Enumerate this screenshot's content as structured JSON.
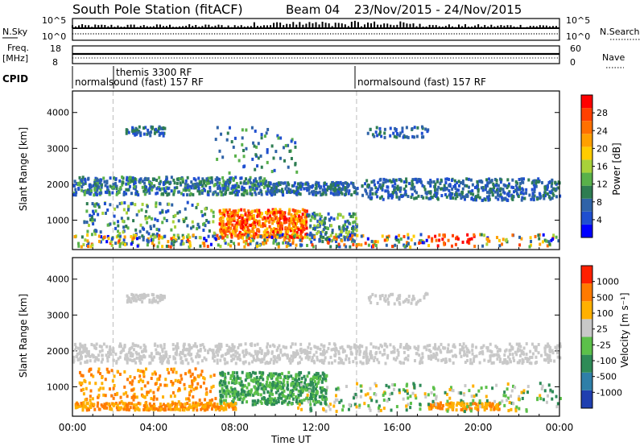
{
  "header": {
    "station": "South Pole Station (fitACF)",
    "beam": "Beam 04",
    "dates": "23/Nov/2015 - 24/Nov/2015"
  },
  "strip_panels": {
    "nsky": {
      "label": "N.Sky",
      "ticks": [
        "10^5",
        "10^0"
      ]
    },
    "nsearch": {
      "label": "N.Search",
      "ticks": [
        "10^5",
        "10^0"
      ]
    },
    "freq": {
      "label_top": "Freq.",
      "label_unit": "[MHz]",
      "ticks": [
        "18",
        "8"
      ]
    },
    "nave": {
      "label": "Nave",
      "ticks": [
        "60",
        "0"
      ]
    },
    "cpid": {
      "label": "CPID",
      "segments": [
        {
          "text": "normalsound (fast) 157 RF"
        },
        {
          "text": "themis 3300 RF"
        },
        {
          "text": "normalsound (fast) 157 RF"
        }
      ]
    }
  },
  "chart_data": [
    {
      "type": "heatmap",
      "name": "power",
      "ylabel": "Slant Range [km]",
      "ylim": [
        180,
        4600
      ],
      "yticks": [
        "1000",
        "2000",
        "3000",
        "4000"
      ],
      "xlim_hours": [
        0,
        24
      ],
      "xticks": [
        "00:00",
        "04:00",
        "08:00",
        "12:00",
        "16:00",
        "20:00",
        "00:00"
      ],
      "colorbar": {
        "label": "Power [dB]",
        "range": [
          0,
          32
        ],
        "ticks": [
          "4",
          "8",
          "12",
          "16",
          "20",
          "24",
          "28"
        ],
        "colors": [
          "#0000ff",
          "#1f4fd0",
          "#2f63a8",
          "#2e7d52",
          "#59b14a",
          "#a8d23a",
          "#ffcc00",
          "#ffa000",
          "#ff7000",
          "#ff4000",
          "#ff0000"
        ]
      }
    },
    {
      "type": "heatmap",
      "name": "velocity",
      "ylabel": "Slant Range [km]",
      "ylim": [
        180,
        4600
      ],
      "yticks": [
        "1000",
        "2000",
        "3000",
        "4000"
      ],
      "xlim_hours": [
        0,
        24
      ],
      "xticks": [
        "00:00",
        "04:00",
        "08:00",
        "12:00",
        "16:00",
        "20:00",
        "00:00"
      ],
      "xlabel": "Time UT",
      "colorbar": {
        "label": "Velocity [m s⁻¹]",
        "ticks": [
          "1000",
          "500",
          "100",
          "25",
          "-25",
          "-100",
          "-500",
          "-1000"
        ],
        "colors": [
          "#1f3fb0",
          "#2f7fa8",
          "#2e8b57",
          "#5cc04a",
          "#c8c8c8",
          "#ffb000",
          "#ff7a00",
          "#ff2000"
        ]
      }
    }
  ]
}
